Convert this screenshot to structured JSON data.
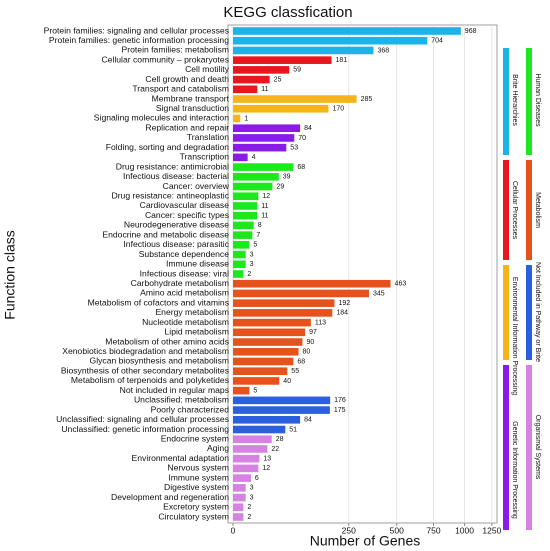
{
  "chart_data": {
    "type": "bar",
    "orientation": "horizontal",
    "title": "KEGG classfication",
    "x_label": "Number of Genes",
    "y_label": "Function class",
    "xscale": "sqrt",
    "xlim": [
      0,
      1300
    ],
    "xticks": [
      0,
      250,
      500,
      750,
      1000,
      1250
    ],
    "grid": true,
    "series": [
      {
        "name": "Brite Hierarchies",
        "color": "#1cb4e8",
        "categories": [
          "Protein families: signaling and cellular processes",
          "Protein families: genetic information processing",
          "Protein families: metabolism"
        ],
        "values": [
          968,
          704,
          368
        ]
      },
      {
        "name": "Cellular Processes",
        "color": "#e8171d",
        "categories": [
          "Cellular community – prokaryotes",
          "Cell motility",
          "Cell growth and death",
          "Transport and catabolism"
        ],
        "values": [
          181,
          59,
          25,
          11
        ]
      },
      {
        "name": "Environmental Information Processing",
        "color": "#f5b41a",
        "categories": [
          "Membrane transport",
          "Signal transduction",
          "Signaling molecules and interaction"
        ],
        "values": [
          285,
          170,
          1
        ]
      },
      {
        "name": "Genetic Information Processing",
        "color": "#8a1ae6",
        "categories": [
          "Replication and repair",
          "Translation",
          "Folding, sorting and degradation",
          "Transcription"
        ],
        "values": [
          84,
          70,
          53,
          4
        ]
      },
      {
        "name": "Human Diseases",
        "color": "#1de81d",
        "categories": [
          "Drug resistance: antimicrobial",
          "Infectious disease: bacterial",
          "Cancer: overview",
          "Drug resistance: antineoplastic",
          "Cardiovascular disease",
          "Cancer: specific types",
          "Neurodegenerative disease",
          "Endocrine and metabolic disease",
          "Infectious disease: parasitic",
          "Substance dependence",
          "Immune disease",
          "Infectious disease: viral"
        ],
        "values": [
          68,
          39,
          29,
          12,
          11,
          11,
          8,
          7,
          5,
          3,
          3,
          2
        ]
      },
      {
        "name": "Metabolism",
        "color": "#e6521c",
        "categories": [
          "Carbohydrate metabolism",
          "Amino acid metabolism",
          "Metabolism of cofactors and vitamins",
          "Energy metabolism",
          "Nucleotide metabolism",
          "Lipid metabolism",
          "Metabolism of other amino acids",
          "Xenobiotics biodegradation and metabolism",
          "Glycan biosynthesis and metabolism",
          "Biosynthesis of other secondary metabolites",
          "Metabolism of terpenoids and polyketides",
          "Not included in regular maps"
        ],
        "values": [
          463,
          345,
          192,
          184,
          113,
          97,
          90,
          80,
          68,
          55,
          40,
          5
        ]
      },
      {
        "name": "Not Included in Pathway or Brite",
        "color": "#2a5fdd",
        "categories": [
          "Unclassified: metabolism",
          "Poorly characterized",
          "Unclassified: signaling and cellular processes",
          "Unclassified: genetic information processing"
        ],
        "values": [
          176,
          175,
          84,
          51
        ]
      },
      {
        "name": "Organismal Systems",
        "color": "#d682e2",
        "categories": [
          "Endocrine system",
          "Aging",
          "Environmental adaptation",
          "Nervous system",
          "Immune system",
          "Digestive system",
          "Development and regeneration",
          "Excretory system",
          "Circulatory system"
        ],
        "values": [
          28,
          22,
          13,
          12,
          6,
          3,
          3,
          2,
          2
        ]
      }
    ]
  }
}
